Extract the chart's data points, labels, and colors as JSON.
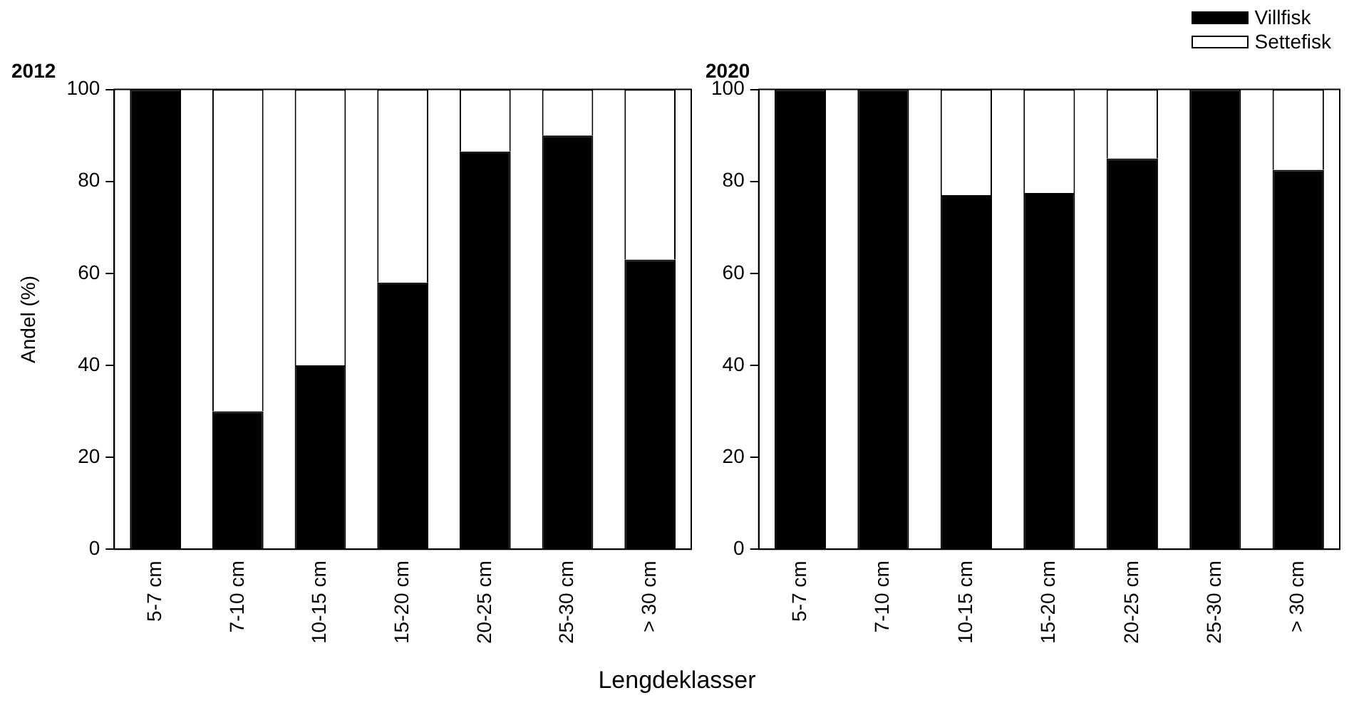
{
  "chart_data": [
    {
      "type": "bar",
      "title": "2012",
      "ylabel": "Andel (%)",
      "xlabel": "Lengdeklasser",
      "categories": [
        "5-7 cm",
        "7-10 cm",
        "10-15 cm",
        "15-20 cm",
        "20-25 cm",
        "25-30 cm",
        "> 30 cm"
      ],
      "stacked": true,
      "ylim": [
        0,
        100
      ],
      "yticks": [
        0,
        20,
        40,
        60,
        80,
        100
      ],
      "grid": false,
      "legend": false,
      "series": [
        {
          "color": "#000000",
          "values": [
            100,
            30,
            40,
            58,
            86.5,
            90,
            63
          ]
        },
        {
          "color": "#ffffff",
          "values": [
            0,
            70,
            60,
            42,
            13.5,
            10,
            37
          ]
        }
      ]
    },
    {
      "type": "bar",
      "title": "2020",
      "categories": [
        "5-7 cm",
        "7-10 cm",
        "10-15 cm",
        "15-20 cm",
        "20-25 cm",
        "25-30 cm",
        "> 30 cm"
      ],
      "stacked": true,
      "ylim": [
        0,
        100
      ],
      "yticks": [
        0,
        20,
        40,
        60,
        80,
        100
      ],
      "grid": false,
      "legend": "top right",
      "series": [
        {
          "name": "Villfisk",
          "color": "#000000",
          "values": [
            100,
            100,
            77,
            77.5,
            85,
            100,
            82.5
          ]
        },
        {
          "name": "Settefisk",
          "color": "#ffffff",
          "values": [
            0,
            0,
            23,
            22.5,
            15,
            0,
            17.5
          ]
        }
      ]
    }
  ]
}
